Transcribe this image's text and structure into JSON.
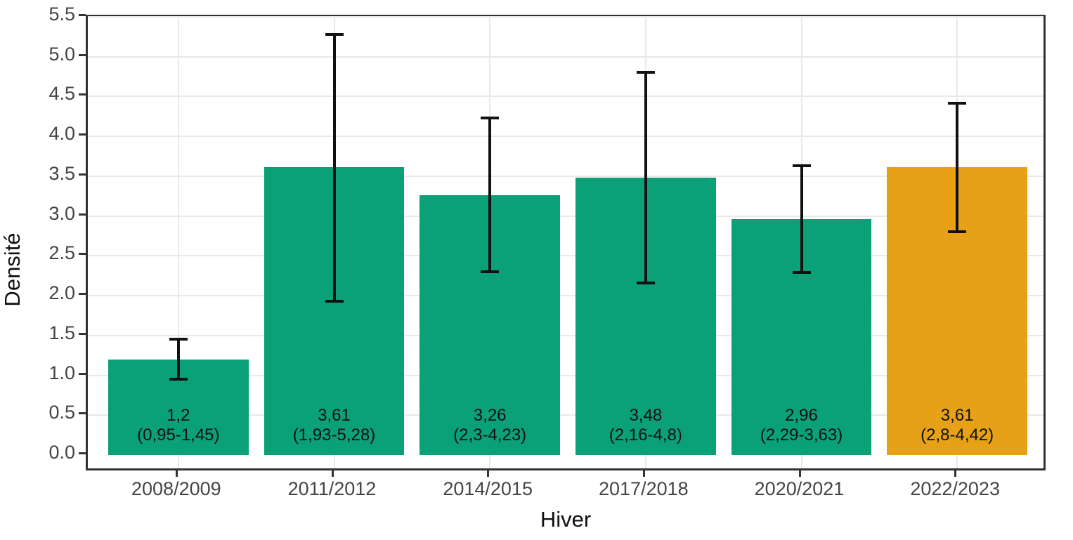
{
  "chart_data": {
    "type": "bar",
    "title": "",
    "xlabel": "Hiver",
    "ylabel": "Densité",
    "categories": [
      "2008/2009",
      "2011/2012",
      "2014/2015",
      "2017/2018",
      "2020/2021",
      "2022/2023"
    ],
    "values": [
      1.2,
      3.61,
      3.26,
      3.48,
      2.96,
      3.61
    ],
    "value_labels": [
      "1,2",
      "3,61",
      "3,26",
      "3,48",
      "2,96",
      "3,61"
    ],
    "interval_labels": [
      "(0,95-1,45)",
      "(1,93-5,28)",
      "(2,3-4,23)",
      "(2,16-4,8)",
      "(2,29-3,63)",
      "(2,8-4,42)"
    ],
    "error_low": [
      0.95,
      1.93,
      2.3,
      2.16,
      2.29,
      2.8
    ],
    "error_high": [
      1.45,
      5.28,
      4.23,
      4.8,
      3.63,
      4.42
    ],
    "bar_colors": [
      "#0aa078",
      "#0aa078",
      "#0aa078",
      "#0aa078",
      "#0aa078",
      "#e6a117"
    ],
    "ylim": [
      0,
      5.5
    ],
    "yticks": [
      {
        "value": 0.0,
        "label": "0.0"
      },
      {
        "value": 0.5,
        "label": "0.5"
      },
      {
        "value": 1.0,
        "label": "1.0"
      },
      {
        "value": 1.5,
        "label": "1.5"
      },
      {
        "value": 2.0,
        "label": "2.0"
      },
      {
        "value": 2.5,
        "label": "2.5"
      },
      {
        "value": 3.0,
        "label": "3.0"
      },
      {
        "value": 3.5,
        "label": "3.5"
      },
      {
        "value": 4.0,
        "label": "4.0"
      },
      {
        "value": 4.5,
        "label": "4.5"
      },
      {
        "value": 5.0,
        "label": "5.0"
      },
      {
        "value": 5.5,
        "label": "5.5"
      }
    ],
    "grid": "major horizontal lines every 0.5; vertical lines at bar centers",
    "legend": "none",
    "error_bar_color": "#111111",
    "panel_border_color": "#333333",
    "gridline_color": "#e9e9e9"
  }
}
